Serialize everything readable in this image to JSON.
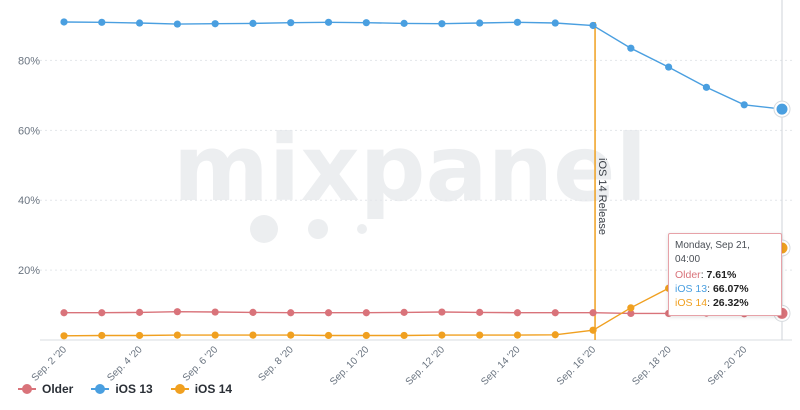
{
  "chart_data": {
    "type": "line",
    "watermark": "mixpanel",
    "x": [
      "Sep. 2 '20",
      "Sep. 3 '20",
      "Sep. 4 '20",
      "Sep. 5 '20",
      "Sep. 6 '20",
      "Sep. 7 '20",
      "Sep. 8 '20",
      "Sep. 9 '20",
      "Sep. 10 '20",
      "Sep. 11 '20",
      "Sep. 12 '20",
      "Sep. 13 '20",
      "Sep. 14 '20",
      "Sep. 15 '20",
      "Sep. 16 '20",
      "Sep. 17 '20",
      "Sep. 18 '20",
      "Sep. 19 '20",
      "Sep. 20 '20",
      "Sep. 21 '20"
    ],
    "x_tick_labels": [
      "Sep. 2 '20",
      "Sep. 4 '20",
      "Sep. 6 '20",
      "Sep. 8 '20",
      "Sep. 10 '20",
      "Sep. 12 '20",
      "Sep. 14 '20",
      "Sep. 16 '20",
      "Sep. 18 '20",
      "Sep. 20 '20"
    ],
    "y_ticks": [
      20,
      40,
      60,
      80
    ],
    "y_tick_labels": [
      "20%",
      "40%",
      "60%",
      "80%"
    ],
    "ylim": [
      0,
      95
    ],
    "grid": true,
    "legend_position": "bottom-left",
    "series": [
      {
        "name": "Older",
        "color": "#d9737a",
        "values": [
          7.8,
          7.8,
          7.9,
          8.1,
          8.0,
          7.9,
          7.8,
          7.8,
          7.8,
          7.9,
          8.0,
          7.9,
          7.8,
          7.8,
          7.8,
          7.6,
          7.6,
          7.7,
          7.5,
          7.61
        ]
      },
      {
        "name": "iOS 13",
        "color": "#4a9fe0",
        "values": [
          91.0,
          90.9,
          90.7,
          90.4,
          90.5,
          90.6,
          90.8,
          90.9,
          90.8,
          90.6,
          90.5,
          90.7,
          90.9,
          90.7,
          90.0,
          83.5,
          78.1,
          72.3,
          67.3,
          66.07
        ]
      },
      {
        "name": "iOS 14",
        "color": "#f0a020",
        "values": [
          1.2,
          1.3,
          1.3,
          1.4,
          1.4,
          1.4,
          1.4,
          1.3,
          1.3,
          1.3,
          1.4,
          1.4,
          1.4,
          1.5,
          2.8,
          9.2,
          14.8,
          20.5,
          24.8,
          26.32
        ]
      }
    ],
    "annotation": {
      "text": "iOS 14 Release",
      "x": "Sep. 16 '20"
    },
    "hover_x": "Sep. 21 '20",
    "tooltip": {
      "date": "Monday, Sep 21, 04:00",
      "rows": [
        {
          "name": "Older",
          "value": "7.61%"
        },
        {
          "name": "iOS 13",
          "value": "66.07%"
        },
        {
          "name": "iOS 14",
          "value": "26.32%"
        }
      ]
    }
  }
}
